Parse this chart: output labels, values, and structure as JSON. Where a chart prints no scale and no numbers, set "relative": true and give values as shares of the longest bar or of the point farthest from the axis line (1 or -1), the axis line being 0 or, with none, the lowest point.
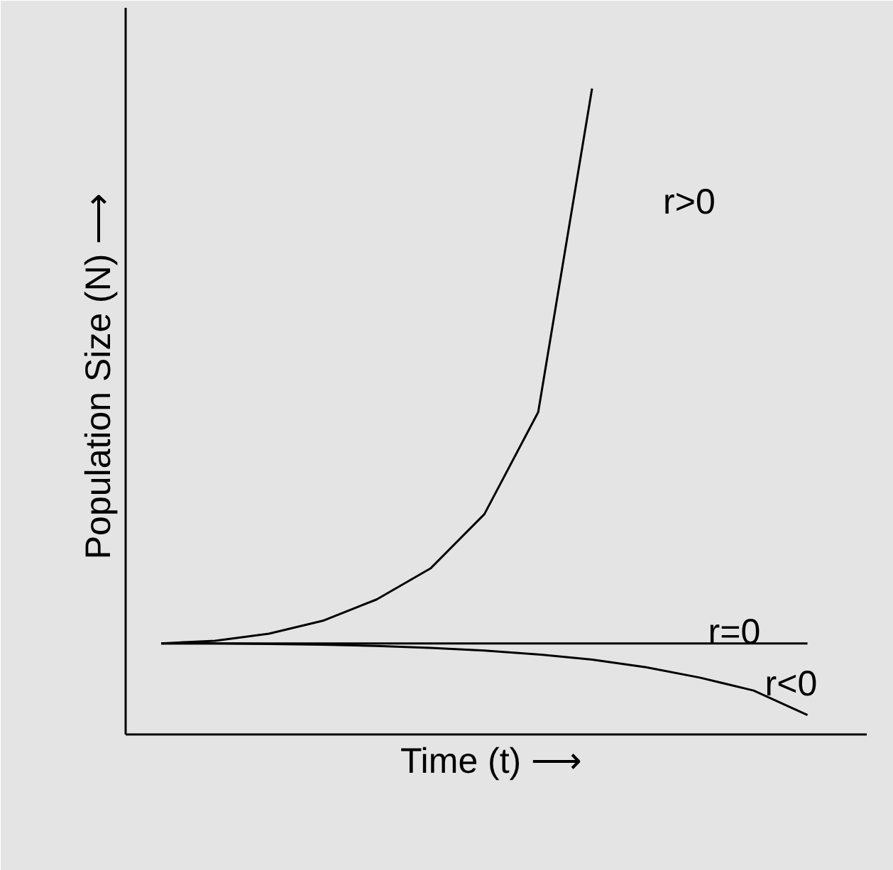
{
  "chart_data": {
    "type": "line",
    "relative": true,
    "xlabel": "Time (t)  ⟶",
    "ylabel": "Population Size (N)  ⟶",
    "categories": [
      null,
      null,
      null,
      null,
      null,
      null,
      null,
      null,
      null,
      null,
      null,
      null,
      null
    ],
    "series": [
      {
        "name": "r>0",
        "color": "#000000",
        "values": [
          0.141,
          0.145,
          0.156,
          0.176,
          0.209,
          0.257,
          0.341,
          0.499,
          1.0,
          null,
          null,
          null,
          null
        ]
      },
      {
        "name": "r=0",
        "color": "#000000",
        "values": [
          0.141,
          0.141,
          0.141,
          0.141,
          0.141,
          0.141,
          0.141,
          0.141,
          0.141,
          0.141,
          0.141,
          0.141,
          0.141
        ]
      },
      {
        "name": "r<0",
        "color": "#000000",
        "values": [
          0.141,
          0.141,
          0.14,
          0.139,
          0.137,
          0.134,
          0.13,
          0.124,
          0.116,
          0.104,
          0.088,
          0.068,
          0.03
        ]
      }
    ],
    "marker": "none",
    "line_style": "solid",
    "tick_labels": false
  }
}
